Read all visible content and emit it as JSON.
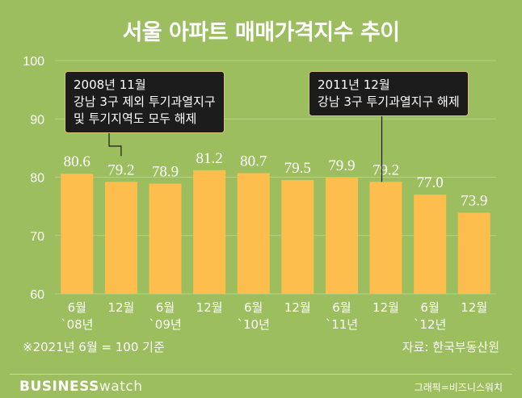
{
  "title": "서울 아파트 매매가격지수 추이",
  "chart_data": {
    "type": "bar",
    "categories": [
      [
        "6월",
        "`08년"
      ],
      [
        "12월",
        ""
      ],
      [
        "6월",
        "`09년"
      ],
      [
        "12월",
        ""
      ],
      [
        "6월",
        "`10년"
      ],
      [
        "12월",
        ""
      ],
      [
        "6월",
        "`11년"
      ],
      [
        "12월",
        ""
      ],
      [
        "6월",
        "`12년"
      ],
      [
        "12월",
        ""
      ]
    ],
    "values": [
      80.6,
      79.2,
      78.9,
      81.2,
      80.7,
      79.5,
      79.9,
      79.2,
      77.0,
      73.9
    ],
    "value_labels": [
      "80.6",
      "79.2",
      "78.9",
      "81.2",
      "80.7",
      "79.5",
      "79.9",
      "79.2",
      "77.0",
      "73.9"
    ],
    "ylim": [
      60,
      100
    ],
    "yticks": [
      60,
      70,
      80,
      90,
      100
    ],
    "grid": true,
    "bar_color": "#fdbe4d",
    "grid_color": "#b6d086",
    "annotations": [
      {
        "bar_index": 1,
        "lines": [
          "2008년 11월",
          "강남 3구 제외 투기과열지구",
          "및 투기지역도 모두 해제"
        ]
      },
      {
        "bar_index": 7,
        "lines": [
          "2011년 12월",
          "강남 3구 투기과열지구 해제"
        ]
      }
    ]
  },
  "note": "※2021년 6월 = 100 기준",
  "source": "자료: 한국부동산원",
  "brand": {
    "bold": "BUSINESS",
    "light": "watch"
  },
  "credit": "그래픽=비즈니스워치",
  "colors": {
    "background": "#9cbe5e",
    "bar": "#fdbe4d",
    "callout_bg": "#1c1c1c"
  }
}
